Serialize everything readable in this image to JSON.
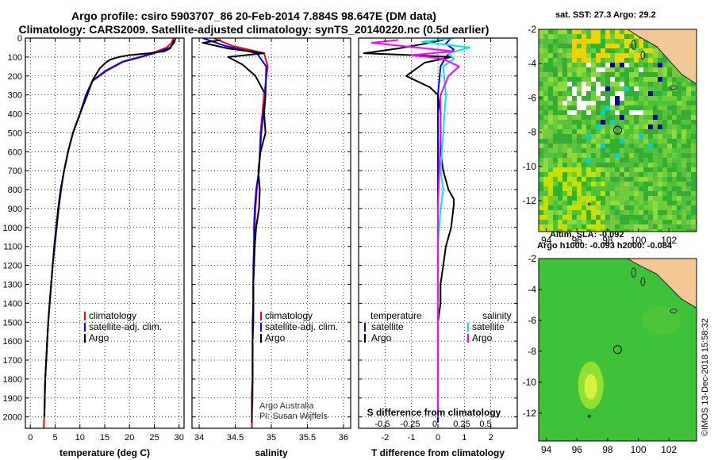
{
  "title": {
    "line1": "Argo profile: csiro 5903707_86 20-Feb-2014 7.884S 98.647E (DM data)",
    "line2": "Climatology: CARS2009. Satellite-adjusted climatology: synTS_20140220.nc (0.5d earlier)"
  },
  "watermark": "©IMOS 13-Dec-2018 15:58:32",
  "colors": {
    "climatology": "#ff0000",
    "satellite": "#0000ff",
    "argo": "#000000",
    "sat_salinity": "#00e5ee",
    "argo_salinity": "#ff00ff"
  },
  "chart_data": [
    {
      "type": "line",
      "id": "temperature",
      "xlabel": "temperature (deg C)",
      "ylabel": "",
      "xlim": [
        -1,
        31
      ],
      "ylim": [
        2060,
        0
      ],
      "xticks": [
        0,
        5,
        10,
        15,
        20,
        25,
        30
      ],
      "xtick_labels": [
        "0",
        "5",
        "10",
        "15",
        "20",
        "25",
        "30"
      ],
      "yticks": [
        0,
        100,
        200,
        300,
        400,
        500,
        600,
        700,
        800,
        900,
        1000,
        1100,
        1200,
        1300,
        1400,
        1500,
        1600,
        1700,
        1800,
        1900,
        2000
      ],
      "ytick_labels": [
        "0",
        "100",
        "200",
        "300",
        "400",
        "500",
        "600",
        "700",
        "800",
        "900",
        "1000",
        "1100",
        "1200",
        "1300",
        "1400",
        "1500",
        "1600",
        "1700",
        "1800",
        "1900",
        "2000"
      ],
      "grid": true,
      "series": [
        {
          "name": "climatology",
          "color": "#ff0000",
          "x": [
            28.9,
            28.5,
            27.5,
            25.0,
            22.0,
            18.5,
            15.0,
            12.5,
            11.2,
            10.0,
            8.6,
            7.6,
            6.8,
            6.2,
            5.7,
            5.3,
            4.9,
            4.5,
            4.2,
            3.9,
            3.6,
            3.4,
            3.2,
            3.0,
            2.9,
            2.8,
            2.7
          ],
          "y": [
            0,
            25,
            50,
            75,
            100,
            125,
            175,
            225,
            300,
            400,
            500,
            600,
            700,
            800,
            900,
            1000,
            1100,
            1200,
            1300,
            1400,
            1500,
            1600,
            1700,
            1800,
            1900,
            2000,
            2060
          ]
        },
        {
          "name": "satellite-adj. clim.",
          "color": "#0000ff",
          "x": [
            29.3,
            29.0,
            28.2,
            25.6,
            22.3,
            18.7,
            15.2,
            12.6,
            11.2,
            10.0,
            8.6,
            7.6,
            6.8,
            6.2,
            5.7,
            5.3,
            4.9,
            4.5,
            4.2,
            3.9,
            3.6,
            3.4,
            3.2,
            3.0,
            2.9,
            2.8
          ],
          "y": [
            0,
            25,
            50,
            75,
            100,
            125,
            175,
            225,
            300,
            400,
            500,
            600,
            700,
            800,
            900,
            1000,
            1100,
            1200,
            1300,
            1400,
            1500,
            1600,
            1700,
            1800,
            1900,
            2000
          ]
        },
        {
          "name": "Argo",
          "color": "#000000",
          "x": [
            29.0,
            28.7,
            28.2,
            27.0,
            24.0,
            20.0,
            17.8,
            16.0,
            15.2,
            14.0,
            12.6,
            11.5,
            10.0,
            8.6,
            7.6,
            6.8,
            6.1,
            5.6,
            5.2,
            4.8,
            4.5,
            4.2,
            3.9,
            3.6,
            3.4,
            3.2,
            3.0,
            2.9,
            2.85
          ],
          "y": [
            10,
            30,
            55,
            70,
            80,
            90,
            100,
            115,
            130,
            160,
            220,
            300,
            400,
            500,
            600,
            700,
            800,
            900,
            1000,
            1100,
            1200,
            1300,
            1400,
            1500,
            1600,
            1700,
            1800,
            1900,
            2000
          ]
        }
      ],
      "legend": [
        "climatology",
        "satellite-adj. clim.",
        "Argo"
      ]
    },
    {
      "type": "line",
      "id": "salinity",
      "xlabel": "salinity",
      "xlim": [
        33.9,
        36.1
      ],
      "ylim": [
        2060,
        0
      ],
      "xticks": [
        34,
        34.5,
        35,
        35.5,
        36
      ],
      "xtick_labels": [
        "34",
        "34.5",
        "35",
        "35.5",
        "36"
      ],
      "grid": true,
      "series": [
        {
          "name": "climatology",
          "color": "#ff0000",
          "x": [
            34.2,
            34.45,
            34.9,
            34.95,
            34.9,
            34.85,
            34.83,
            34.8,
            34.78,
            34.77,
            34.76,
            34.76,
            34.75,
            34.75,
            34.75,
            34.74,
            34.74,
            34.74,
            34.74,
            34.73,
            34.73,
            34.73
          ],
          "y": [
            0,
            40,
            80,
            150,
            300,
            500,
            700,
            800,
            900,
            1000,
            1100,
            1200,
            1300,
            1400,
            1500,
            1600,
            1700,
            1800,
            1900,
            2000,
            2030,
            2060
          ]
        },
        {
          "name": "satellite-adj. clim.",
          "color": "#0000ff",
          "x": [
            34.05,
            34.35,
            34.8,
            34.93,
            34.92,
            34.86,
            34.83,
            34.79,
            34.77,
            34.76,
            34.76,
            34.75,
            34.75,
            34.75,
            34.75,
            34.74,
            34.74,
            34.74,
            34.73,
            34.73,
            34.73
          ],
          "y": [
            0,
            40,
            80,
            150,
            300,
            500,
            700,
            800,
            900,
            1000,
            1100,
            1200,
            1300,
            1400,
            1500,
            1600,
            1700,
            1800,
            1900,
            2000,
            2030
          ]
        },
        {
          "name": "Argo",
          "color": "#000000",
          "x": [
            34.3,
            34.05,
            34.4,
            34.9,
            34.4,
            34.6,
            34.78,
            34.92,
            34.9,
            34.92,
            34.85,
            34.82,
            34.84,
            34.83,
            34.79,
            34.77,
            34.76,
            34.75,
            34.75,
            34.74,
            34.74,
            34.74,
            34.74,
            34.73,
            34.73,
            34.73
          ],
          "y": [
            10,
            25,
            55,
            80,
            100,
            140,
            200,
            300,
            400,
            500,
            600,
            700,
            800,
            900,
            1000,
            1100,
            1200,
            1300,
            1400,
            1500,
            1600,
            1700,
            1800,
            1900,
            2000,
            2030
          ]
        }
      ],
      "legend": [
        "climatology",
        "satellite-adj. clim.",
        "Argo"
      ],
      "annotations": [
        "Argo Australia",
        "PI: Susan Wijffels"
      ]
    },
    {
      "type": "line",
      "id": "difference",
      "xlabel": "T difference from climatology",
      "xlim": [
        -3,
        3
      ],
      "ylim": [
        2060,
        0
      ],
      "xticks": [
        -2,
        -1,
        0,
        1,
        2
      ],
      "xtick_labels": [
        "-2",
        "-1",
        "0",
        "1",
        "2"
      ],
      "top_xlabel": "S difference from climatology",
      "top_xtick_labels": [
        "-0.5",
        "-0.25",
        "0",
        "0.25",
        "0.5"
      ],
      "grid": true,
      "series": [
        {
          "name": "temperature satellite",
          "color": "#0000ff",
          "x": [
            0.5,
            0.3,
            0.6,
            0.3,
            0.1,
            0.0,
            0.0,
            0.0,
            0.0,
            0.0,
            0.0,
            0.0,
            0.0,
            0.0,
            0.0,
            0.0,
            0.0,
            0.0
          ],
          "y": [
            0,
            30,
            60,
            100,
            150,
            300,
            500,
            700,
            900,
            1100,
            1300,
            1500,
            1600,
            1700,
            1800,
            1900,
            2000,
            2030
          ]
        },
        {
          "name": "temperature Argo",
          "color": "#000000",
          "x": [
            0.2,
            -0.5,
            -1.5,
            -2.8,
            -1.0,
            0.5,
            -0.5,
            -1.2,
            -0.3,
            0.0,
            0.1,
            0.1,
            0.1,
            0.2,
            0.4,
            0.6,
            0.6,
            0.5,
            0.3,
            0.2,
            0.1,
            0.1,
            0.0,
            0.0,
            0.0,
            0.0
          ],
          "y": [
            10,
            30,
            55,
            80,
            90,
            100,
            130,
            200,
            260,
            300,
            400,
            500,
            600,
            700,
            800,
            850,
            880,
            1000,
            1100,
            1200,
            1300,
            1400,
            1500,
            1600,
            1800,
            2000
          ]
        },
        {
          "name": "salinity satellite",
          "color": "#00e5ee",
          "x": [
            0.6,
            -0.6,
            1.2,
            0.4,
            0.6,
            0.2,
            0.3,
            0.2,
            0.1,
            0.2,
            0.1,
            0.0,
            0.0,
            0.0,
            0.0,
            0.0
          ],
          "y": [
            0,
            20,
            50,
            80,
            110,
            150,
            300,
            500,
            700,
            800,
            900,
            1100,
            1300,
            1500,
            1800,
            2000
          ]
        },
        {
          "name": "salinity Argo",
          "color": "#ff00ff",
          "x": [
            -1.5,
            -2.5,
            -0.8,
            0.6,
            -1.0,
            0.2,
            0.8,
            0.4,
            0.1,
            0.1,
            0.05,
            0.0,
            0.0,
            0.0,
            0.0
          ],
          "y": [
            10,
            25,
            50,
            70,
            90,
            110,
            150,
            200,
            300,
            500,
            700,
            900,
            1200,
            1500,
            2000
          ]
        }
      ],
      "legend_left_title": "temperature",
      "legend_right_title": "salinity",
      "legend": [
        "satellite",
        "Argo"
      ]
    },
    {
      "type": "heatmap",
      "id": "sst-map",
      "title": "sat. SST: 27.3 Argo: 29.2",
      "xlim": [
        93.5,
        103.8
      ],
      "ylim": [
        -13.8,
        -2
      ],
      "xticks": [
        94,
        96,
        98,
        100,
        102
      ],
      "yticks": [
        -2,
        -4,
        -6,
        -8,
        -10,
        -12
      ],
      "float_position": {
        "lon": 98.647,
        "lat": -7.884
      }
    },
    {
      "type": "heatmap",
      "id": "sla-map",
      "title": "Altim. SLA: -0.092",
      "subtitle": "Argo h1000: -0.093 h2000: -0.084",
      "xlim": [
        93.5,
        103.8
      ],
      "ylim": [
        -13.8,
        -2
      ],
      "xticks": [
        94,
        96,
        98,
        100,
        102
      ],
      "yticks": [
        -2,
        -4,
        -6,
        -8,
        -10,
        -12
      ],
      "float_position": {
        "lon": 98.647,
        "lat": -7.884
      }
    }
  ]
}
